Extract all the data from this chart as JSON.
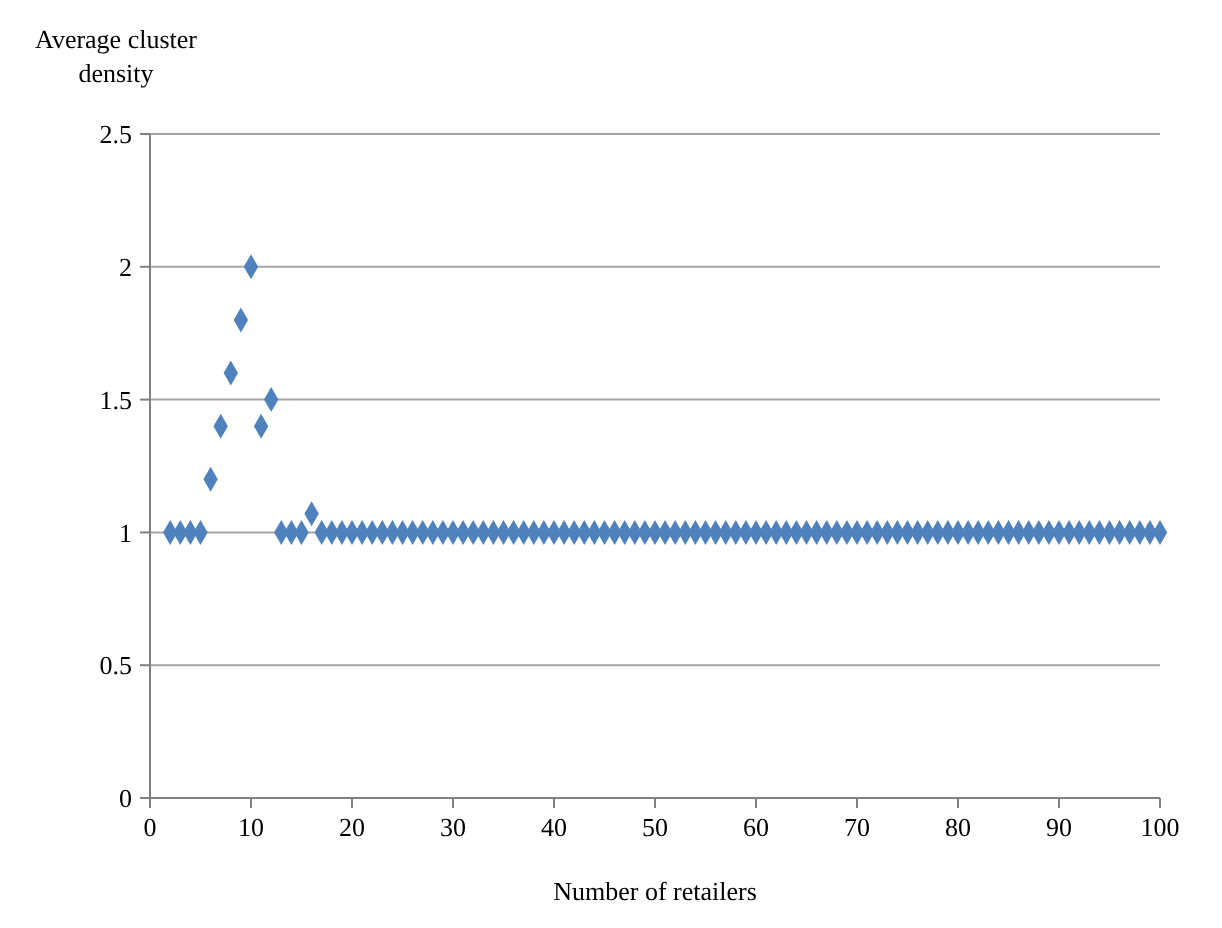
{
  "chart_data": {
    "type": "scatter",
    "ylabel": "Average cluster density",
    "xlabel": "Number of retailers",
    "x": [
      2,
      3,
      4,
      5,
      6,
      7,
      8,
      9,
      10,
      11,
      12,
      13,
      14,
      15,
      16,
      17,
      18,
      19,
      20,
      21,
      22,
      23,
      24,
      25,
      26,
      27,
      28,
      29,
      30,
      31,
      32,
      33,
      34,
      35,
      36,
      37,
      38,
      39,
      40,
      41,
      42,
      43,
      44,
      45,
      46,
      47,
      48,
      49,
      50,
      51,
      52,
      53,
      54,
      55,
      56,
      57,
      58,
      59,
      60,
      61,
      62,
      63,
      64,
      65,
      66,
      67,
      68,
      69,
      70,
      71,
      72,
      73,
      74,
      75,
      76,
      77,
      78,
      79,
      80,
      81,
      82,
      83,
      84,
      85,
      86,
      87,
      88,
      89,
      90,
      91,
      92,
      93,
      94,
      95,
      96,
      97,
      98,
      99,
      100
    ],
    "series": [
      {
        "color": "#4f81bd",
        "values": [
          1,
          1,
          1,
          1,
          1.2,
          1.4,
          1.6,
          1.8,
          2,
          1.4,
          1.5,
          1,
          1,
          1,
          1.07,
          1,
          1,
          1,
          1,
          1,
          1,
          1,
          1,
          1,
          1,
          1,
          1,
          1,
          1,
          1,
          1,
          1,
          1,
          1,
          1,
          1,
          1,
          1,
          1,
          1,
          1,
          1,
          1,
          1,
          1,
          1,
          1,
          1,
          1,
          1,
          1,
          1,
          1,
          1,
          1,
          1,
          1,
          1,
          1,
          1,
          1,
          1,
          1,
          1,
          1,
          1,
          1,
          1,
          1,
          1,
          1,
          1,
          1,
          1,
          1,
          1,
          1,
          1,
          1,
          1,
          1,
          1,
          1,
          1,
          1,
          1,
          1,
          1,
          1,
          1,
          1,
          1,
          1,
          1,
          1,
          1,
          1,
          1,
          1
        ]
      }
    ],
    "xlim": [
      0,
      100
    ],
    "xticks": [
      0,
      10,
      20,
      30,
      40,
      50,
      60,
      70,
      80,
      90,
      100
    ],
    "ylim": [
      0,
      2.5
    ],
    "yticks": [
      0,
      0.5,
      1,
      1.5,
      2,
      2.5
    ],
    "grid": "y",
    "marker": "diamond"
  }
}
